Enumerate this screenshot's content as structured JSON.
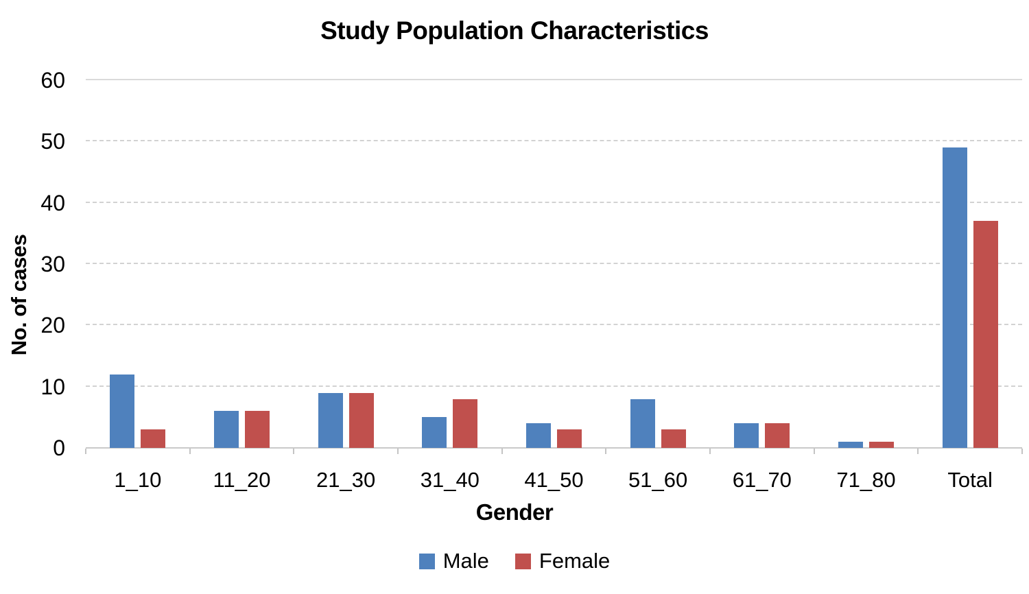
{
  "chart_data": {
    "type": "bar",
    "title": "Study Population Characteristics",
    "xlabel": "Gender",
    "ylabel": "No. of cases",
    "categories": [
      "1_10",
      "11_20",
      "21_30",
      "31_40",
      "41_50",
      "51_60",
      "61_70",
      "71_80",
      "Total"
    ],
    "series": [
      {
        "name": "Male",
        "color": "#4F81BD",
        "values": [
          12,
          6,
          9,
          5,
          4,
          8,
          4,
          1,
          49
        ]
      },
      {
        "name": "Female",
        "color": "#C0504D",
        "values": [
          3,
          6,
          9,
          8,
          3,
          3,
          4,
          1,
          37
        ]
      }
    ],
    "ylim": [
      0,
      60
    ],
    "yticks": [
      0,
      10,
      20,
      30,
      40,
      50,
      60
    ],
    "grid": "horizontal-dashed, solid top line at 60",
    "legend_position": "bottom"
  },
  "colors": {
    "background": "#ffffff",
    "male_bar": "#4F81BD",
    "female_bar": "#C0504D",
    "gridline": "#d2d2d2",
    "axis_line": "#c9c9c9",
    "text": "#000000"
  }
}
